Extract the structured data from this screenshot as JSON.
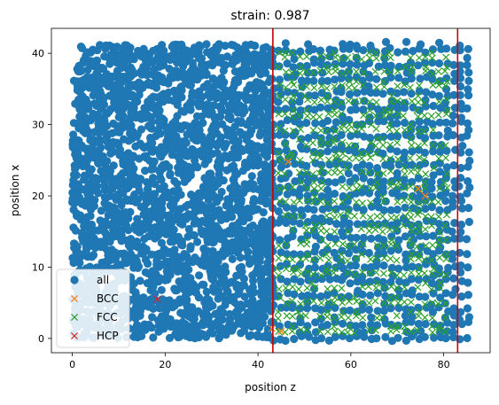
{
  "chart_data": {
    "type": "scatter",
    "title": "strain: 0.987",
    "xlabel": "position z",
    "ylabel": "position x",
    "xlim": [
      -4.5,
      90
    ],
    "ylim": [
      -2,
      43.5
    ],
    "xticks": [
      0,
      20,
      40,
      60,
      80
    ],
    "yticks": [
      0,
      10,
      20,
      30,
      40
    ],
    "grid": false,
    "legend": {
      "placement": "lower-left",
      "entries": [
        {
          "label": "all",
          "marker": "circle",
          "color": "#1f77b4"
        },
        {
          "label": "BCC",
          "marker": "x",
          "color": "#ff7f0e"
        },
        {
          "label": "FCC",
          "marker": "x",
          "color": "#2ca02c"
        },
        {
          "label": "HCP",
          "marker": "x",
          "color": "#d62728"
        }
      ]
    },
    "vertical_lines": [
      {
        "x": 43.2,
        "color": "#cc0000"
      },
      {
        "x": 83.0,
        "color": "#cc0000"
      }
    ],
    "series": [
      {
        "name": "all",
        "marker": "circle",
        "color": "#1f77b4",
        "regions": [
          {
            "kind": "dense_random",
            "x": [
              0,
              43.2
            ],
            "y": [
              0,
              41.3
            ]
          },
          {
            "kind": "layered",
            "x": [
              43.2,
              85.5
            ],
            "y": [
              0,
              41.3
            ],
            "x_spacing": 1.5,
            "y_spacing": 2.02,
            "layers": 21
          }
        ]
      },
      {
        "name": "BCC",
        "marker": "x",
        "color": "#ff7f0e",
        "points": [
          [
            43.0,
            1.4
          ],
          [
            46.5,
            24.8
          ],
          [
            74.5,
            21.0
          ],
          [
            76.0,
            20.0
          ],
          [
            45.0,
            1.0
          ]
        ]
      },
      {
        "name": "FCC",
        "marker": "x",
        "color": "#2ca02c",
        "regions": [
          {
            "kind": "layered",
            "x": [
              44.5,
              81.5
            ],
            "y": [
              1.0,
              41.3
            ],
            "x_spacing": 1.5,
            "y_spacing": 2.02,
            "layers": 20
          }
        ]
      },
      {
        "name": "HCP",
        "marker": "x",
        "color": "#d62728",
        "points": [
          [
            18.3,
            5.5
          ]
        ]
      }
    ]
  }
}
